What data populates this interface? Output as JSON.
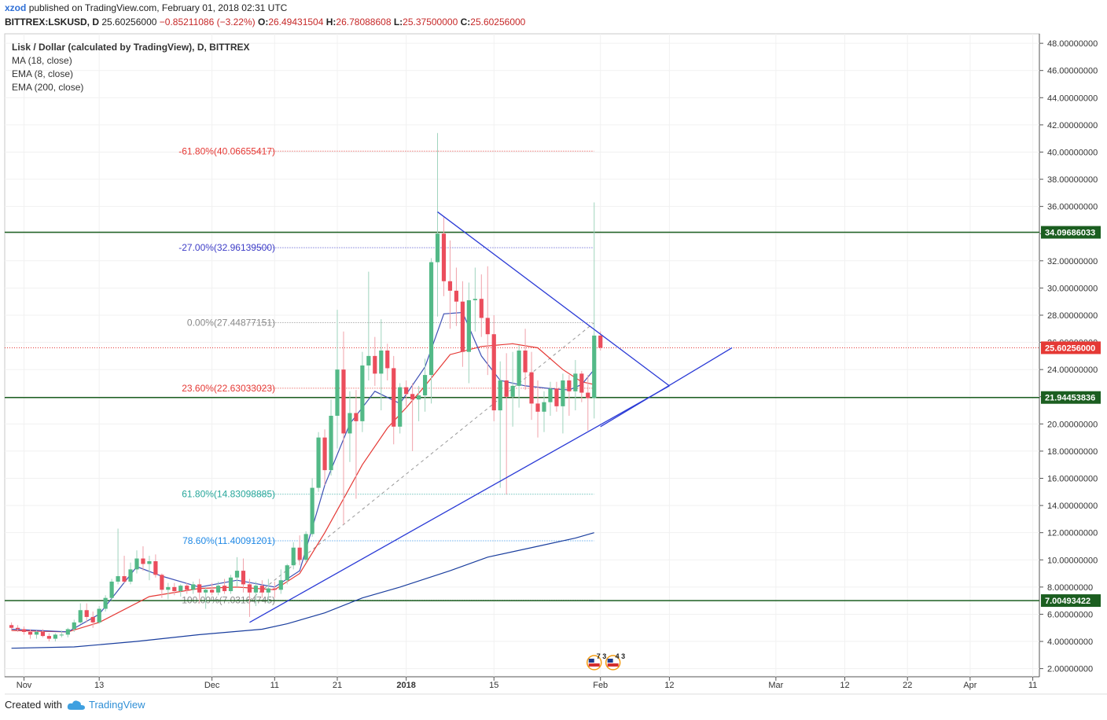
{
  "header": {
    "user": "xzod",
    "published": "published on TradingView.com, February 01, 2018 02:31 UTC",
    "symbol": "BITTREX:LSKUSD, D",
    "price": "25.60256000",
    "change": "−0.85211086 (−3.22%)",
    "open_label": "O:",
    "open": "26.49431504",
    "high_label": "H:",
    "high": "26.78088608",
    "low_label": "L:",
    "low": "25.37500000",
    "close_label": "C:",
    "close": "25.60256000"
  },
  "legend": {
    "title": "Lisk / Dollar (calculated by TradingView), D, BITTREX",
    "ind1": "MA (18, close)",
    "ind2": "EMA (8, close)",
    "ind3": "EMA (200, close)"
  },
  "footer": {
    "created_with": "Created with",
    "brand": "TradingView"
  },
  "colors": {
    "up": "#53b987",
    "down": "#eb4d5c",
    "trend": "#2a3ad6",
    "level": "#1b5e20",
    "ma": "#e53935",
    "ema8": "#3f51b5",
    "ema200": "#1a3e9e"
  },
  "chart_data": {
    "type": "candlestick",
    "title": "Lisk / Dollar (calculated by TradingView), D, BITTREX",
    "y_axis": {
      "range": [
        1.4,
        48.7
      ],
      "ticks": [
        "2.00000000",
        "4.00000000",
        "6.00000000",
        "8.00000000",
        "10.00000000",
        "12.00000000",
        "14.00000000",
        "16.00000000",
        "18.00000000",
        "20.00000000",
        "22.00000000",
        "24.00000000",
        "26.00000000",
        "28.00000000",
        "30.00000000",
        "32.00000000",
        "34.00000000",
        "36.00000000",
        "38.00000000",
        "40.00000000",
        "42.00000000",
        "44.00000000",
        "46.00000000",
        "48.00000000"
      ]
    },
    "x_axis": {
      "range": [
        "2017-10-30",
        "2018-04-11"
      ],
      "ticks": [
        {
          "date": "2017-11-01",
          "label": "Nov"
        },
        {
          "date": "2017-11-13",
          "label": "13"
        },
        {
          "date": "2017-12-01",
          "label": "Dec"
        },
        {
          "date": "2017-12-11",
          "label": "11"
        },
        {
          "date": "2017-12-21",
          "label": "21"
        },
        {
          "date": "2018-01-01",
          "label": "2018"
        },
        {
          "date": "2018-01-15",
          "label": "15"
        },
        {
          "date": "2018-02-01",
          "label": "Feb"
        },
        {
          "date": "2018-02-12",
          "label": "12"
        },
        {
          "date": "2018-03-01",
          "label": "Mar"
        },
        {
          "date": "2018-03-12",
          "label": "12"
        },
        {
          "date": "2018-03-22",
          "label": "22"
        },
        {
          "date": "2018-04-01",
          "label": "Apr"
        },
        {
          "date": "2018-04-11",
          "label": "11"
        }
      ]
    },
    "candles": [
      {
        "d": "2017-10-30",
        "o": 5.2,
        "h": 5.4,
        "l": 4.8,
        "c": 5.0
      },
      {
        "d": "2017-10-31",
        "o": 5.0,
        "h": 5.2,
        "l": 4.7,
        "c": 4.9
      },
      {
        "d": "2017-11-01",
        "o": 4.9,
        "h": 5.1,
        "l": 4.5,
        "c": 4.7
      },
      {
        "d": "2017-11-02",
        "o": 4.7,
        "h": 4.9,
        "l": 4.2,
        "c": 4.5
      },
      {
        "d": "2017-11-03",
        "o": 4.5,
        "h": 4.8,
        "l": 4.2,
        "c": 4.7
      },
      {
        "d": "2017-11-04",
        "o": 4.7,
        "h": 4.9,
        "l": 4.3,
        "c": 4.4
      },
      {
        "d": "2017-11-05",
        "o": 4.4,
        "h": 4.6,
        "l": 4.0,
        "c": 4.2
      },
      {
        "d": "2017-11-06",
        "o": 4.2,
        "h": 4.6,
        "l": 4.0,
        "c": 4.5
      },
      {
        "d": "2017-11-07",
        "o": 4.5,
        "h": 4.8,
        "l": 4.3,
        "c": 4.5
      },
      {
        "d": "2017-11-08",
        "o": 4.5,
        "h": 5.0,
        "l": 4.3,
        "c": 4.9
      },
      {
        "d": "2017-11-09",
        "o": 4.9,
        "h": 5.6,
        "l": 4.7,
        "c": 5.4
      },
      {
        "d": "2017-11-10",
        "o": 5.4,
        "h": 6.8,
        "l": 5.3,
        "c": 6.3
      },
      {
        "d": "2017-11-11",
        "o": 6.3,
        "h": 6.8,
        "l": 5.4,
        "c": 5.8
      },
      {
        "d": "2017-11-12",
        "o": 5.8,
        "h": 6.2,
        "l": 5.0,
        "c": 5.4
      },
      {
        "d": "2017-11-13",
        "o": 5.4,
        "h": 6.6,
        "l": 5.3,
        "c": 6.4
      },
      {
        "d": "2017-11-14",
        "o": 6.4,
        "h": 7.4,
        "l": 6.2,
        "c": 7.2
      },
      {
        "d": "2017-11-15",
        "o": 7.2,
        "h": 8.6,
        "l": 7.0,
        "c": 8.4
      },
      {
        "d": "2017-11-16",
        "o": 8.4,
        "h": 12.3,
        "l": 8.2,
        "c": 8.8
      },
      {
        "d": "2017-11-17",
        "o": 8.8,
        "h": 10.3,
        "l": 8.3,
        "c": 8.4
      },
      {
        "d": "2017-11-18",
        "o": 8.4,
        "h": 9.8,
        "l": 8.2,
        "c": 9.3
      },
      {
        "d": "2017-11-19",
        "o": 9.3,
        "h": 10.7,
        "l": 9.0,
        "c": 10.1
      },
      {
        "d": "2017-11-20",
        "o": 10.1,
        "h": 11.0,
        "l": 9.2,
        "c": 9.7
      },
      {
        "d": "2017-11-21",
        "o": 9.7,
        "h": 10.3,
        "l": 8.5,
        "c": 9.9
      },
      {
        "d": "2017-11-22",
        "o": 9.9,
        "h": 10.4,
        "l": 8.7,
        "c": 8.9
      },
      {
        "d": "2017-11-23",
        "o": 8.9,
        "h": 9.0,
        "l": 7.2,
        "c": 7.8
      },
      {
        "d": "2017-11-24",
        "o": 7.8,
        "h": 8.3,
        "l": 7.1,
        "c": 8.0
      },
      {
        "d": "2017-11-25",
        "o": 8.0,
        "h": 8.3,
        "l": 7.4,
        "c": 7.7
      },
      {
        "d": "2017-11-26",
        "o": 7.7,
        "h": 8.2,
        "l": 7.3,
        "c": 8.1
      },
      {
        "d": "2017-11-27",
        "o": 8.1,
        "h": 8.3,
        "l": 7.5,
        "c": 7.8
      },
      {
        "d": "2017-11-28",
        "o": 7.8,
        "h": 8.4,
        "l": 7.5,
        "c": 8.2
      },
      {
        "d": "2017-11-29",
        "o": 8.2,
        "h": 8.6,
        "l": 6.8,
        "c": 7.6
      },
      {
        "d": "2017-11-30",
        "o": 7.6,
        "h": 8.0,
        "l": 6.4,
        "c": 7.8
      },
      {
        "d": "2017-12-01",
        "o": 7.8,
        "h": 8.3,
        "l": 7.4,
        "c": 7.6
      },
      {
        "d": "2017-12-02",
        "o": 7.6,
        "h": 8.4,
        "l": 7.4,
        "c": 8.1
      },
      {
        "d": "2017-12-03",
        "o": 8.1,
        "h": 8.6,
        "l": 7.5,
        "c": 7.7
      },
      {
        "d": "2017-12-04",
        "o": 7.7,
        "h": 8.9,
        "l": 7.5,
        "c": 8.7
      },
      {
        "d": "2017-12-05",
        "o": 8.7,
        "h": 10.2,
        "l": 8.0,
        "c": 9.2
      },
      {
        "d": "2017-12-06",
        "o": 9.2,
        "h": 10.1,
        "l": 7.6,
        "c": 8.2
      },
      {
        "d": "2017-12-07",
        "o": 8.2,
        "h": 8.6,
        "l": 5.8,
        "c": 7.6
      },
      {
        "d": "2017-12-08",
        "o": 7.6,
        "h": 8.4,
        "l": 6.6,
        "c": 8.1
      },
      {
        "d": "2017-12-09",
        "o": 8.1,
        "h": 8.5,
        "l": 7.2,
        "c": 7.6
      },
      {
        "d": "2017-12-10",
        "o": 7.6,
        "h": 8.6,
        "l": 6.8,
        "c": 7.9
      },
      {
        "d": "2017-12-11",
        "o": 7.9,
        "h": 8.4,
        "l": 7.2,
        "c": 7.8
      },
      {
        "d": "2017-12-12",
        "o": 7.8,
        "h": 9.3,
        "l": 7.5,
        "c": 8.5
      },
      {
        "d": "2017-12-13",
        "o": 8.5,
        "h": 9.7,
        "l": 8.2,
        "c": 9.6
      },
      {
        "d": "2017-12-14",
        "o": 9.6,
        "h": 11.3,
        "l": 9.3,
        "c": 10.9
      },
      {
        "d": "2017-12-15",
        "o": 10.9,
        "h": 11.8,
        "l": 9.6,
        "c": 10.0
      },
      {
        "d": "2017-12-16",
        "o": 10.0,
        "h": 12.1,
        "l": 9.8,
        "c": 11.9
      },
      {
        "d": "2017-12-17",
        "o": 11.9,
        "h": 16.0,
        "l": 11.7,
        "c": 15.3
      },
      {
        "d": "2017-12-18",
        "o": 15.3,
        "h": 19.4,
        "l": 15.0,
        "c": 19.0
      },
      {
        "d": "2017-12-19",
        "o": 19.0,
        "h": 19.6,
        "l": 15.5,
        "c": 16.6
      },
      {
        "d": "2017-12-20",
        "o": 16.6,
        "h": 21.8,
        "l": 16.2,
        "c": 20.6
      },
      {
        "d": "2017-12-21",
        "o": 20.6,
        "h": 28.4,
        "l": 18.2,
        "c": 24.0
      },
      {
        "d": "2017-12-22",
        "o": 24.0,
        "h": 26.8,
        "l": 12.6,
        "c": 19.3
      },
      {
        "d": "2017-12-23",
        "o": 19.3,
        "h": 22.4,
        "l": 17.2,
        "c": 20.8
      },
      {
        "d": "2017-12-24",
        "o": 20.8,
        "h": 22.5,
        "l": 14.5,
        "c": 20.2
      },
      {
        "d": "2017-12-25",
        "o": 20.2,
        "h": 25.3,
        "l": 19.4,
        "c": 24.3
      },
      {
        "d": "2017-12-26",
        "o": 24.3,
        "h": 31.2,
        "l": 23.2,
        "c": 25.0
      },
      {
        "d": "2017-12-27",
        "o": 25.0,
        "h": 26.4,
        "l": 22.8,
        "c": 23.7
      },
      {
        "d": "2017-12-28",
        "o": 23.7,
        "h": 27.7,
        "l": 21.0,
        "c": 25.4
      },
      {
        "d": "2017-12-29",
        "o": 25.4,
        "h": 25.9,
        "l": 23.2,
        "c": 24.1
      },
      {
        "d": "2017-12-30",
        "o": 24.1,
        "h": 25.0,
        "l": 18.5,
        "c": 19.8
      },
      {
        "d": "2017-12-31",
        "o": 19.8,
        "h": 23.0,
        "l": 19.3,
        "c": 22.7
      },
      {
        "d": "2018-01-01",
        "o": 22.7,
        "h": 23.2,
        "l": 21.3,
        "c": 22.2
      },
      {
        "d": "2018-01-02",
        "o": 22.2,
        "h": 23.0,
        "l": 18.0,
        "c": 21.8
      },
      {
        "d": "2018-01-03",
        "o": 21.8,
        "h": 22.8,
        "l": 20.2,
        "c": 22.1
      },
      {
        "d": "2018-01-04",
        "o": 22.1,
        "h": 24.8,
        "l": 20.9,
        "c": 23.6
      },
      {
        "d": "2018-01-05",
        "o": 23.6,
        "h": 32.2,
        "l": 21.5,
        "c": 31.9
      },
      {
        "d": "2018-01-06",
        "o": 31.9,
        "h": 41.4,
        "l": 27.9,
        "c": 34.0
      },
      {
        "d": "2018-01-07",
        "o": 34.0,
        "h": 35.2,
        "l": 29.4,
        "c": 30.5
      },
      {
        "d": "2018-01-08",
        "o": 30.5,
        "h": 33.5,
        "l": 27.0,
        "c": 29.8
      },
      {
        "d": "2018-01-09",
        "o": 29.8,
        "h": 31.5,
        "l": 27.2,
        "c": 29.0
      },
      {
        "d": "2018-01-10",
        "o": 29.0,
        "h": 30.5,
        "l": 24.2,
        "c": 25.3
      },
      {
        "d": "2018-01-11",
        "o": 25.3,
        "h": 30.4,
        "l": 23.0,
        "c": 29.1
      },
      {
        "d": "2018-01-12",
        "o": 29.1,
        "h": 31.5,
        "l": 26.8,
        "c": 29.2
      },
      {
        "d": "2018-01-13",
        "o": 29.2,
        "h": 31.0,
        "l": 26.4,
        "c": 27.8
      },
      {
        "d": "2018-01-14",
        "o": 27.8,
        "h": 31.6,
        "l": 23.6,
        "c": 26.6
      },
      {
        "d": "2018-01-15",
        "o": 26.6,
        "h": 28.0,
        "l": 20.2,
        "c": 21.0
      },
      {
        "d": "2018-01-16",
        "o": 21.0,
        "h": 24.6,
        "l": 15.3,
        "c": 23.2
      },
      {
        "d": "2018-01-17",
        "o": 23.2,
        "h": 25.2,
        "l": 14.8,
        "c": 22.0
      },
      {
        "d": "2018-01-18",
        "o": 22.0,
        "h": 25.3,
        "l": 19.8,
        "c": 22.8
      },
      {
        "d": "2018-01-19",
        "o": 22.8,
        "h": 25.8,
        "l": 21.2,
        "c": 25.4
      },
      {
        "d": "2018-01-20",
        "o": 25.4,
        "h": 27.0,
        "l": 22.5,
        "c": 23.8
      },
      {
        "d": "2018-01-21",
        "o": 23.8,
        "h": 25.3,
        "l": 20.3,
        "c": 21.5
      },
      {
        "d": "2018-01-22",
        "o": 21.5,
        "h": 23.2,
        "l": 19.0,
        "c": 20.9
      },
      {
        "d": "2018-01-23",
        "o": 20.9,
        "h": 22.4,
        "l": 19.4,
        "c": 21.6
      },
      {
        "d": "2018-01-24",
        "o": 21.6,
        "h": 23.1,
        "l": 20.6,
        "c": 22.6
      },
      {
        "d": "2018-01-25",
        "o": 22.6,
        "h": 23.1,
        "l": 20.9,
        "c": 21.3
      },
      {
        "d": "2018-01-26",
        "o": 21.3,
        "h": 23.7,
        "l": 19.3,
        "c": 23.2
      },
      {
        "d": "2018-01-27",
        "o": 23.2,
        "h": 23.6,
        "l": 20.6,
        "c": 22.4
      },
      {
        "d": "2018-01-28",
        "o": 22.4,
        "h": 24.7,
        "l": 21.0,
        "c": 23.7
      },
      {
        "d": "2018-01-29",
        "o": 23.7,
        "h": 23.9,
        "l": 21.6,
        "c": 22.3
      },
      {
        "d": "2018-01-30",
        "o": 22.3,
        "h": 23.6,
        "l": 19.5,
        "c": 21.9
      },
      {
        "d": "2018-01-31",
        "o": 21.9,
        "h": 36.3,
        "l": 20.4,
        "c": 26.5
      },
      {
        "d": "2018-02-01",
        "o": 26.5,
        "h": 26.8,
        "l": 25.4,
        "c": 25.6
      }
    ],
    "ma18": [
      [
        0,
        4.8
      ],
      [
        9,
        4.7
      ],
      [
        14,
        5.4
      ],
      [
        22,
        7.3
      ],
      [
        30,
        7.9
      ],
      [
        36,
        8.0
      ],
      [
        42,
        7.8
      ],
      [
        46,
        9.0
      ],
      [
        50,
        12.0
      ],
      [
        56,
        17.0
      ],
      [
        60,
        19.7
      ],
      [
        63,
        21.2
      ],
      [
        66,
        22.8
      ],
      [
        70,
        25.1
      ],
      [
        75,
        25.7
      ],
      [
        80,
        25.9
      ],
      [
        84,
        25.6
      ],
      [
        88,
        24.0
      ],
      [
        91,
        23.1
      ],
      [
        93,
        22.9
      ]
    ],
    "ema8": [
      [
        0,
        4.9
      ],
      [
        9,
        4.7
      ],
      [
        14,
        6.0
      ],
      [
        20,
        9.5
      ],
      [
        24,
        8.8
      ],
      [
        30,
        8.0
      ],
      [
        36,
        8.5
      ],
      [
        42,
        8.0
      ],
      [
        46,
        9.2
      ],
      [
        50,
        15.5
      ],
      [
        54,
        20.0
      ],
      [
        58,
        22.4
      ],
      [
        62,
        21.5
      ],
      [
        66,
        24.2
      ],
      [
        69,
        28.1
      ],
      [
        72,
        28.2
      ],
      [
        75,
        25.0
      ],
      [
        78,
        23.2
      ],
      [
        82,
        22.8
      ],
      [
        86,
        22.6
      ],
      [
        89,
        22.5
      ],
      [
        91,
        22.9
      ],
      [
        93,
        24.0
      ]
    ],
    "ema200": [
      [
        0,
        3.5
      ],
      [
        10,
        3.6
      ],
      [
        20,
        4.0
      ],
      [
        30,
        4.5
      ],
      [
        40,
        4.9
      ],
      [
        44,
        5.3
      ],
      [
        50,
        6.1
      ],
      [
        56,
        7.2
      ],
      [
        62,
        8.0
      ],
      [
        70,
        9.2
      ],
      [
        76,
        10.2
      ],
      [
        84,
        11.0
      ],
      [
        90,
        11.6
      ],
      [
        93,
        12.0
      ]
    ],
    "trend_lines": [
      {
        "from": [
          "2017-12-07",
          5.4
        ],
        "to": [
          "2018-02-12",
          22.8
        ]
      },
      {
        "from": [
          "2018-01-06",
          35.6
        ],
        "to": [
          "2018-02-12",
          22.8
        ]
      },
      {
        "from": [
          "2018-02-01",
          19.8
        ],
        "to": [
          "2018-02-22",
          25.6
        ]
      }
    ],
    "fib_trend_line": {
      "from": [
        "2017-12-07",
        7.03
      ],
      "to": [
        "2018-01-31",
        27.45
      ]
    },
    "horizontal_levels": [
      {
        "value": 34.09686033,
        "label": "34.09686033"
      },
      {
        "value": 21.94453836,
        "label": "21.94453836"
      },
      {
        "value": 7.00493422,
        "label": "7.00493422"
      }
    ],
    "current_price": {
      "value": 25.60256,
      "label": "25.60256000"
    },
    "fib_levels": [
      {
        "value": 40.06655417,
        "label": "-61.80%(40.06655417)",
        "color": "#e53935"
      },
      {
        "value": 32.961395,
        "label": "-27.00%(32.96139500)",
        "color": "#3d3dc7"
      },
      {
        "value": 27.44877151,
        "label": "0.00%(27.44877151)",
        "color": "#888888"
      },
      {
        "value": 22.63033023,
        "label": "23.60%(22.63033023)",
        "color": "#e53935"
      },
      {
        "value": 14.83098885,
        "label": "61.80%(14.83098885)",
        "color": "#26a69a"
      },
      {
        "value": 11.40091201,
        "label": "78.60%(11.40091201)",
        "color": "#1e88e5"
      },
      {
        "value": 7.03164745,
        "label": "100.00%(7.03164745)",
        "color": "#888888"
      }
    ],
    "event_badges": [
      {
        "date": "2018-01-31",
        "label": "7 3"
      },
      {
        "date": "2018-02-03",
        "label": "4 3"
      }
    ]
  }
}
